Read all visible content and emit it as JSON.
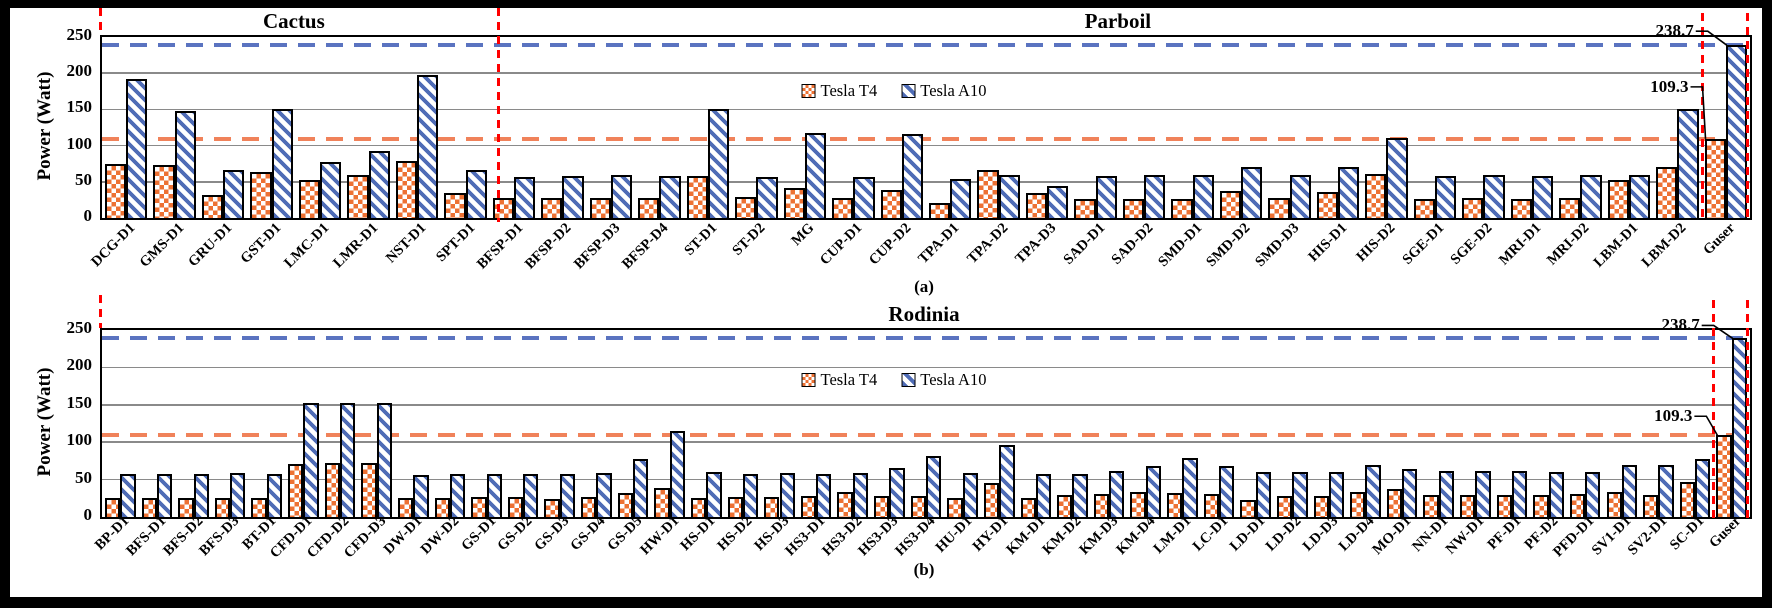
{
  "figure": {
    "background": "#000000",
    "panel_background": "#ffffff"
  },
  "colors": {
    "tesla_t4": "#ED7133",
    "tesla_a10": "#4F6CB6",
    "t4_dash_line": "#F0825A",
    "a10_dash_line": "#5A73C0",
    "red_marker": "#FF0000",
    "gridline": "#8A8A8A"
  },
  "chart_data": [
    {
      "id": "a",
      "type": "bar",
      "caption": "(a)",
      "ylabel": "Power (Watt)",
      "ylim": [
        0,
        250
      ],
      "yticks": [
        0,
        50,
        100,
        150,
        200,
        250
      ],
      "grid": true,
      "legend_position": "inside-top-center",
      "sections": [
        {
          "title": "Cactus",
          "from": 0,
          "to": 8
        },
        {
          "title": "Parboil",
          "from": 8,
          "to": 34
        }
      ],
      "categories": [
        "DCG-D1",
        "GMS-D1",
        "GRU-D1",
        "GST-D1",
        "LMC-D1",
        "LMR-D1",
        "NST-D1",
        "SPT-D1",
        "BFSP-D1",
        "BFSP-D2",
        "BFSP-D3",
        "BFSP-D4",
        "ST-D1",
        "ST-D2",
        "MG",
        "CUP-D1",
        "CUP-D2",
        "TPA-D1",
        "TPA-D2",
        "TPA-D3",
        "SAD-D1",
        "SAD-D2",
        "SMD-D1",
        "SMD-D2",
        "SMD-D3",
        "HIS-D1",
        "HIS-D2",
        "SGE-D1",
        "SGE-D2",
        "MRI-D1",
        "MRI-D2",
        "LBM-D1",
        "LBM-D2",
        "Guser"
      ],
      "series": [
        {
          "name": "Tesla T4",
          "pattern": "checker",
          "color": "#ED7133",
          "values": [
            75,
            73,
            32,
            63,
            52,
            59,
            79,
            35,
            27,
            27,
            28,
            27,
            58,
            29,
            41,
            27,
            39,
            21,
            66,
            35,
            26,
            26,
            26,
            37,
            27,
            36,
            61,
            26,
            28,
            26,
            28,
            52,
            71,
            109.3
          ]
        },
        {
          "name": "Tesla A10",
          "pattern": "diagonal-stripes",
          "color": "#4F6CB6",
          "values": [
            192,
            148,
            66,
            150,
            77,
            92,
            198,
            66,
            57,
            58,
            60,
            58,
            150,
            56,
            117,
            57,
            116,
            54,
            59,
            44,
            58,
            60,
            60,
            70,
            59,
            70,
            111,
            58,
            60,
            58,
            60,
            59,
            150,
            238.7
          ]
        }
      ],
      "hlines": [
        {
          "value": 238.7,
          "series": "Tesla A10",
          "style": "dashed",
          "color": "#5A73C0"
        },
        {
          "value": 109.3,
          "series": "Tesla T4",
          "style": "dashed",
          "color": "#F0825A"
        }
      ],
      "annotations": [
        {
          "text": "238.7",
          "series_index": 1,
          "category": "Guser"
        },
        {
          "text": "109.3",
          "series_index": 0,
          "category": "Guser"
        }
      ],
      "red_markers": {
        "left_edge": true,
        "after_category": "SPT-D1",
        "flank_last_category": true
      }
    },
    {
      "id": "b",
      "type": "bar",
      "caption": "(b)",
      "ylabel": "Power (Watt)",
      "ylim": [
        0,
        250
      ],
      "yticks": [
        0,
        50,
        100,
        150,
        200,
        250
      ],
      "grid": true,
      "legend_position": "inside-top-center",
      "sections": [
        {
          "title": "Rodinia",
          "from": 0,
          "to": 45
        }
      ],
      "categories": [
        "BP-D1",
        "BFS-D1",
        "BFS-D2",
        "BFS-D3",
        "BT-D1",
        "CFD-D1",
        "CFD-D2",
        "CFD-D3",
        "DW-D1",
        "DW-D2",
        "GS-D1",
        "GS-D2",
        "GS-D3",
        "GS-D4",
        "GS-D5",
        "HW-D1",
        "HS-D1",
        "HS-D2",
        "HS-D3",
        "HS3-D1",
        "HS3-D2",
        "HS3-D3",
        "HS3-D4",
        "HU-D1",
        "HY-D1",
        "KM-D1",
        "KM-D2",
        "KM-D3",
        "KM-D4",
        "LM-D1",
        "LC-D1",
        "LD-D1",
        "LD-D2",
        "LD-D3",
        "LD-D4",
        "MO-D1",
        "NN-D1",
        "NW-D1",
        "PF-D1",
        "PF-D2",
        "PFD-D1",
        "SV1-D1",
        "SV2-D1",
        "SC-D1",
        "Guser"
      ],
      "series": [
        {
          "name": "Tesla T4",
          "pattern": "checker",
          "color": "#ED7133",
          "values": [
            25,
            26,
            26,
            26,
            26,
            71,
            72,
            72,
            26,
            26,
            27,
            27,
            24,
            27,
            32,
            39,
            25,
            27,
            27,
            28,
            33,
            28,
            28,
            26,
            45,
            26,
            30,
            31,
            33,
            32,
            31,
            23,
            28,
            28,
            34,
            37,
            29,
            29,
            29,
            29,
            31,
            33,
            30,
            47,
            109.3
          ]
        },
        {
          "name": "Tesla A10",
          "pattern": "diagonal-stripes",
          "color": "#4F6CB6",
          "values": [
            57,
            58,
            58,
            59,
            57,
            153,
            153,
            152,
            56,
            58,
            58,
            58,
            57,
            59,
            77,
            115,
            60,
            58,
            59,
            58,
            59,
            66,
            81,
            59,
            96,
            58,
            57,
            62,
            68,
            79,
            68,
            60,
            60,
            60,
            70,
            64,
            61,
            61,
            61,
            60,
            60,
            69,
            70,
            77,
            238.7
          ]
        }
      ],
      "hlines": [
        {
          "value": 238.7,
          "series": "Tesla A10",
          "style": "dashed",
          "color": "#5A73C0"
        },
        {
          "value": 109.3,
          "series": "Tesla T4",
          "style": "dashed",
          "color": "#F0825A"
        }
      ],
      "annotations": [
        {
          "text": "238.7",
          "series_index": 1,
          "category": "Guser"
        },
        {
          "text": "109.3",
          "series_index": 0,
          "category": "Guser"
        }
      ],
      "red_markers": {
        "left_edge": true,
        "flank_last_category": true
      }
    }
  ]
}
